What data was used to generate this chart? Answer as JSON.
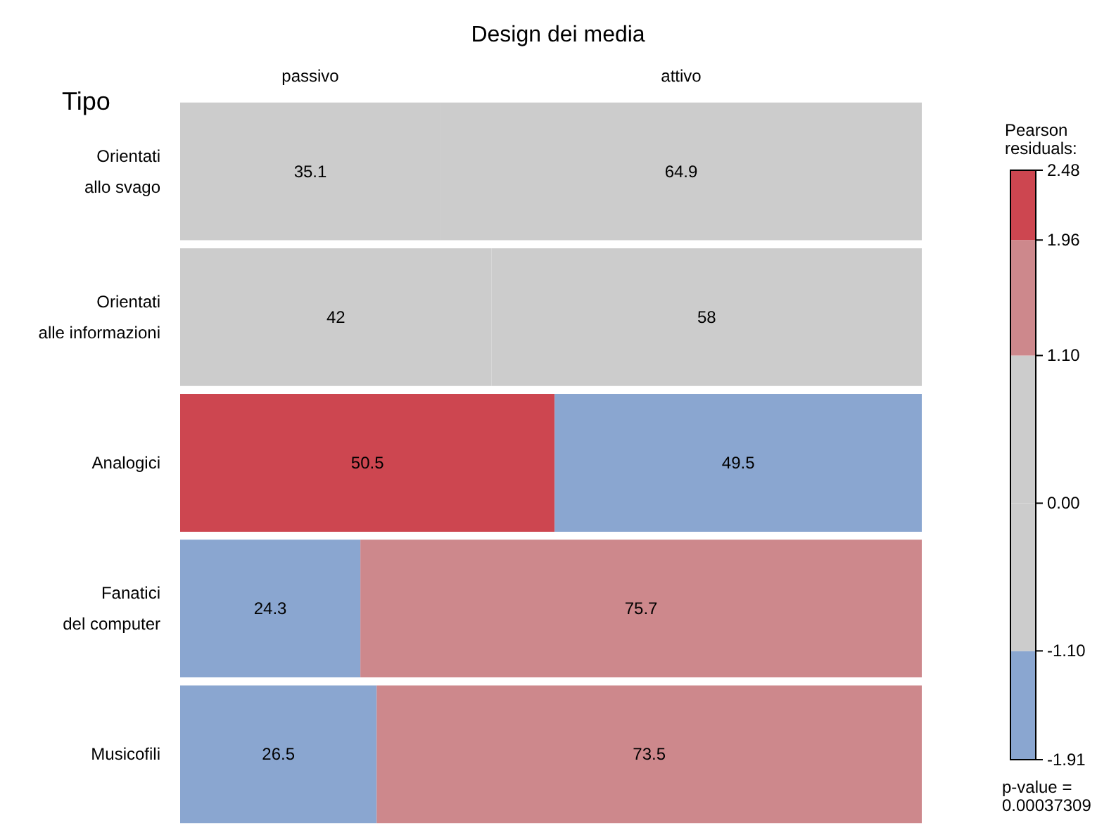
{
  "chart_data": {
    "type": "bar",
    "orientation": "horizontal",
    "stacked": true,
    "title": "Design dei media",
    "ylabel": "Tipo",
    "categories": [
      "Orientati allo svago",
      "Orientati alle informazioni",
      "Analogici",
      "Fanatici del computer",
      "Musicofili"
    ],
    "series": [
      {
        "name": "passivo",
        "values": [
          35.1,
          42,
          50.5,
          24.3,
          26.5
        ],
        "value_labels": [
          "35.1",
          "42",
          "50.5",
          "24.3",
          "26.5"
        ],
        "colors": [
          "#cccccc",
          "#cccccc",
          "#cd4650",
          "#8aa6d0",
          "#8aa6d0"
        ]
      },
      {
        "name": "attivo",
        "values": [
          64.9,
          58,
          49.5,
          75.7,
          73.5
        ],
        "value_labels": [
          "64.9",
          "58",
          "49.5",
          "75.7",
          "73.5"
        ],
        "colors": [
          "#cccccc",
          "#cccccc",
          "#8aa6d0",
          "#cd888c",
          "#cd888c"
        ]
      }
    ],
    "clabel": "Pearson residuals:",
    "clim": [
      -1.91,
      2.48
    ],
    "cticks": [
      -1.91,
      {
        "value": -1.1,
        "label": "-1.10"
      },
      {
        "value": 0,
        "label": "0.00"
      },
      {
        "value": 1.1,
        "label": "1.10"
      },
      1.96,
      2.48
    ],
    "annotations": [
      "p-value = 0.00037309"
    ],
    "legend": false
  }
}
